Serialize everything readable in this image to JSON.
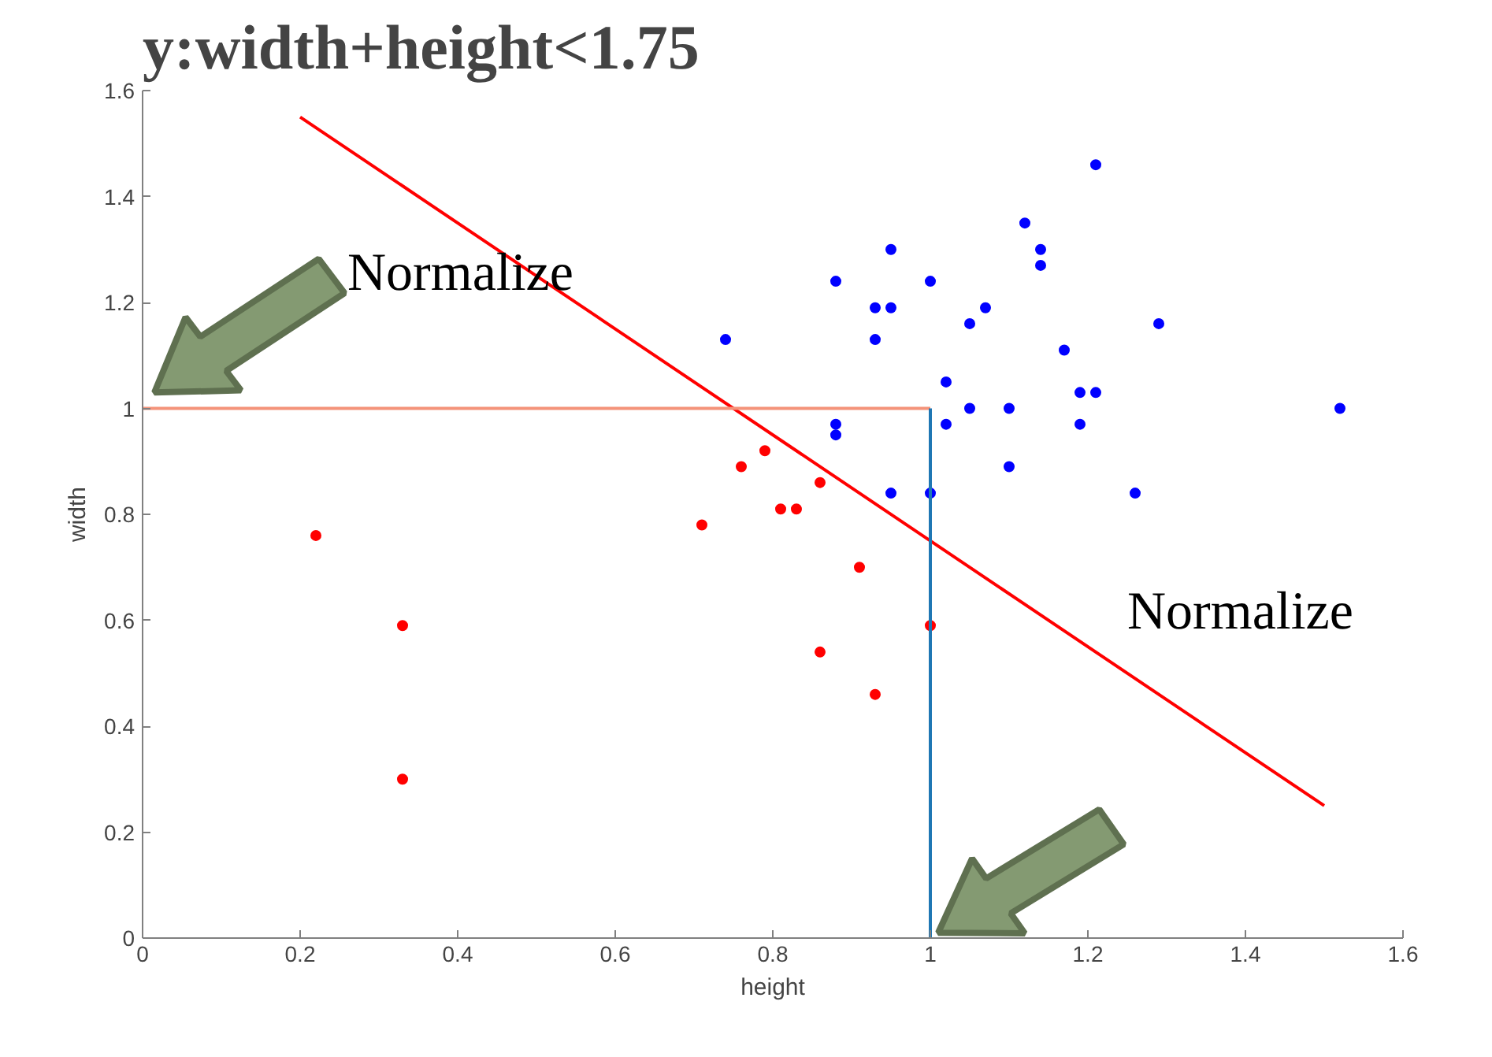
{
  "chart_data": {
    "type": "scatter",
    "title": "y:width+height<1.75",
    "xlabel": "height",
    "ylabel": "width",
    "xlim": [
      0,
      1.6
    ],
    "ylim": [
      0,
      1.6
    ],
    "xticks": [
      0,
      0.2,
      0.4,
      0.6,
      0.8,
      1,
      1.2,
      1.4,
      1.6
    ],
    "yticks": [
      0,
      0.2,
      0.4,
      0.6,
      0.8,
      1,
      1.2,
      1.4,
      1.6
    ],
    "grid": false,
    "annotations": [
      "Normalize",
      "Normalize"
    ],
    "series": [
      {
        "marker": "circle",
        "color": "#0000ff",
        "x": [
          1.21,
          1.12,
          1.14,
          1.14,
          0.95,
          0.88,
          1.0,
          0.93,
          0.95,
          1.07,
          1.05,
          1.29,
          0.74,
          0.93,
          1.17,
          1.02,
          1.19,
          1.21,
          1.05,
          1.1,
          1.52,
          0.88,
          0.88,
          1.02,
          1.19,
          1.1,
          0.95,
          1.0,
          1.26
        ],
        "values": [
          1.46,
          1.35,
          1.3,
          1.27,
          1.3,
          1.24,
          1.24,
          1.19,
          1.19,
          1.19,
          1.16,
          1.16,
          1.13,
          1.13,
          1.11,
          1.05,
          1.03,
          1.03,
          1.0,
          1.0,
          1.0,
          0.97,
          0.95,
          0.97,
          0.97,
          0.89,
          0.84,
          0.84,
          0.84
        ]
      },
      {
        "marker": "circle",
        "color": "#ff0000",
        "x": [
          0.79,
          0.76,
          0.86,
          0.81,
          0.83,
          0.71,
          0.22,
          0.91,
          0.33,
          1.0,
          0.86,
          0.93,
          0.33
        ],
        "values": [
          0.92,
          0.89,
          0.86,
          0.81,
          0.81,
          0.78,
          0.76,
          0.7,
          0.59,
          0.59,
          0.54,
          0.46,
          0.3
        ]
      },
      {
        "type": "line",
        "color": "#ff0000",
        "x": [
          0.2,
          1.5
        ],
        "values": [
          1.55,
          0.25
        ]
      },
      {
        "type": "line",
        "color": "#f4937a",
        "x": [
          0,
          1
        ],
        "values": [
          1,
          1
        ]
      },
      {
        "type": "line",
        "color": "#1f77b4",
        "x": [
          1,
          1
        ],
        "values": [
          0,
          1
        ]
      }
    ]
  }
}
